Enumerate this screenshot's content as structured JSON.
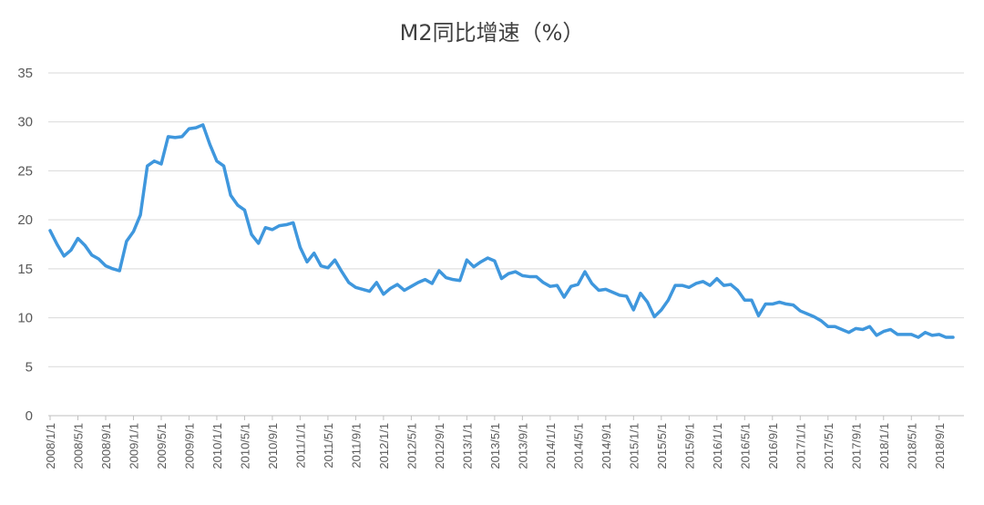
{
  "chart_data": {
    "type": "line",
    "title": "M2同比增速（%）",
    "xlabel": "",
    "ylabel": "",
    "ylim": [
      0,
      35
    ],
    "yticks": [
      0,
      5,
      10,
      15,
      20,
      25,
      30,
      35
    ],
    "grid": true,
    "legend": "none",
    "line_color": "#3f97dd",
    "x_tick_labels": [
      "2008/1/1",
      "2008/5/1",
      "2008/9/1",
      "2009/1/1",
      "2009/5/1",
      "2009/9/1",
      "2010/1/1",
      "2010/5/1",
      "2010/9/1",
      "2011/1/1",
      "2011/5/1",
      "2011/9/1",
      "2012/1/1",
      "2012/5/1",
      "2012/9/1",
      "2013/1/1",
      "2013/5/1",
      "2013/9/1",
      "2014/1/1",
      "2014/5/1",
      "2014/9/1",
      "2015/1/1",
      "2015/5/1",
      "2015/9/1",
      "2016/1/1",
      "2016/5/1",
      "2016/9/1",
      "2017/1/1",
      "2017/5/1",
      "2017/9/1",
      "2018/1/1",
      "2018/5/1",
      "2018/9/1"
    ],
    "start": "2008/1",
    "series": [
      {
        "values": [
          18.9,
          17.5,
          16.3,
          16.9,
          18.1,
          17.4,
          16.4,
          16.0,
          15.3,
          15.0,
          14.8,
          17.8,
          18.8,
          20.5,
          25.5,
          26.0,
          25.7,
          28.5,
          28.4,
          28.5,
          29.3,
          29.4,
          29.7,
          27.7,
          26.0,
          25.5,
          22.5,
          21.5,
          21.0,
          18.5,
          17.6,
          19.2,
          19.0,
          19.4,
          19.5,
          19.7,
          17.2,
          15.7,
          16.6,
          15.3,
          15.1,
          15.9,
          14.7,
          13.6,
          13.1,
          12.9,
          12.7,
          13.6,
          12.4,
          13.0,
          13.4,
          12.8,
          13.2,
          13.6,
          13.9,
          13.5,
          14.8,
          14.1,
          13.9,
          13.8,
          15.9,
          15.2,
          15.7,
          16.1,
          15.8,
          14.0,
          14.5,
          14.7,
          14.3,
          14.2,
          14.2,
          13.6,
          13.2,
          13.3,
          12.1,
          13.2,
          13.4,
          14.7,
          13.5,
          12.8,
          12.9,
          12.6,
          12.3,
          12.2,
          10.8,
          12.5,
          11.6,
          10.1,
          10.8,
          11.8,
          13.3,
          13.3,
          13.1,
          13.5,
          13.7,
          13.3,
          14.0,
          13.3,
          13.4,
          12.8,
          11.8,
          11.8,
          10.2,
          11.4,
          11.4,
          11.6,
          11.4,
          11.3,
          10.7,
          10.4,
          10.1,
          9.7,
          9.1,
          9.1,
          8.8,
          8.5,
          8.9,
          8.8,
          9.1,
          8.2,
          8.6,
          8.8,
          8.3,
          8.3,
          8.3,
          8.0,
          8.5,
          8.2,
          8.3,
          8.0,
          8.0
        ]
      }
    ]
  }
}
